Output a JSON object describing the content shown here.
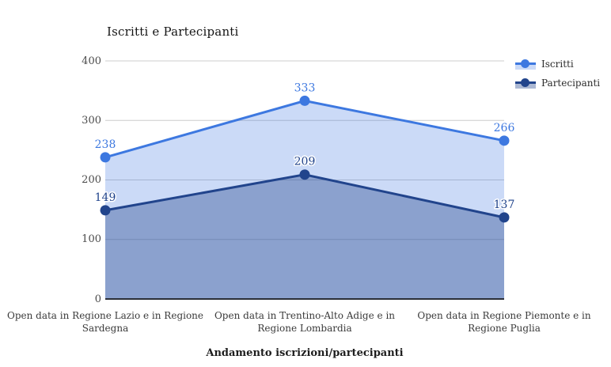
{
  "chart_data": {
    "type": "area",
    "title": "Iscritti e Partecipanti",
    "xlabel": "Andamento iscrizioni/partecipanti",
    "ylabel": "",
    "categories": [
      "Open data in Regione Lazio e in Regione Sardegna",
      "Open data in Trentino-Alto Adige e in Regione Lombardia",
      "Open data in Regione Piemonte e in Regione Puglia"
    ],
    "series": [
      {
        "name": "Iscritti",
        "values": [
          238,
          333,
          266
        ],
        "color": "#3d78e0",
        "fill": "rgba(61,120,224,0.27)"
      },
      {
        "name": "Partecipanti",
        "values": [
          149,
          209,
          137
        ],
        "color": "#21448c",
        "fill": "rgba(33,68,140,0.38)"
      }
    ],
    "ylim": [
      0,
      400
    ],
    "yticks": [
      0,
      100,
      200,
      300,
      400
    ],
    "grid": true,
    "marker": "circle",
    "legend_position": "top-right",
    "colors": {
      "gridline": "#cccccc",
      "baseline": "#2b2f38",
      "tick_label": "#4c4c4c",
      "category_label": "#3a3a3a",
      "title": "#141414"
    }
  }
}
